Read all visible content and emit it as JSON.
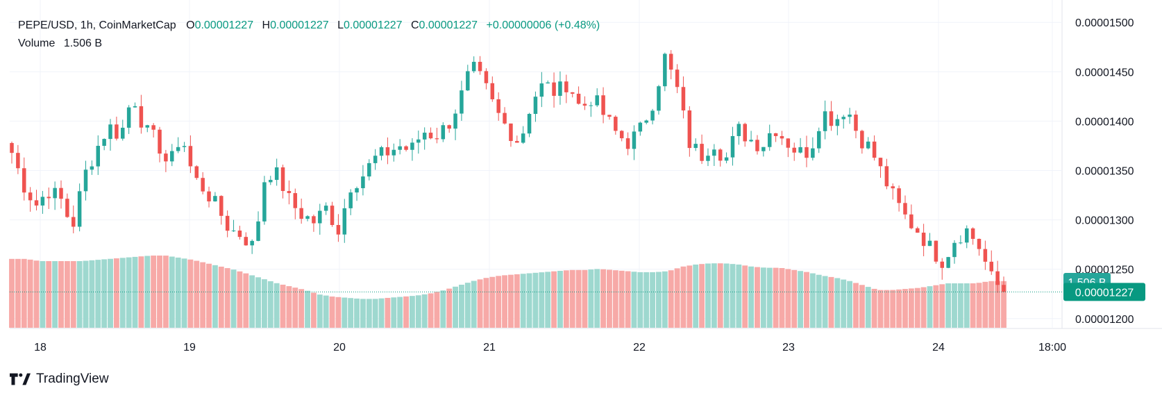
{
  "header": {
    "symbol": "PEPE/USD, 1h, CoinMarketCap",
    "o_label": "O",
    "o_value": "0.00001227",
    "h_label": "H",
    "h_value": "0.00001227",
    "l_label": "L",
    "l_value": "0.00001227",
    "c_label": "C",
    "c_value": "0.00001227",
    "change": "+0.00000006 (+0.48%)",
    "volume_label": "Volume",
    "volume_value": "1.506 B"
  },
  "branding": {
    "name": "TradingView"
  },
  "colors": {
    "up": "#26a69a",
    "down": "#ef5350",
    "vol_up": "#9ed8cf",
    "vol_down": "#f7a9a7",
    "grid": "#f0f3fa",
    "axis_text": "#131722",
    "price_line": "#089981"
  },
  "price_tag": {
    "value": "0.00001227"
  },
  "volume_tag": {
    "value": "1.506 B"
  },
  "chart_data": {
    "type": "candlestick",
    "y_axis_ticks": [
      "0.00001200",
      "0.00001250",
      "0.00001300",
      "0.00001350",
      "0.00001400",
      "0.00001450",
      "0.00001500"
    ],
    "ylim": [
      1.19e-05,
      1.51e-05
    ],
    "x_axis_ticks": [
      "18",
      "19",
      "20",
      "21",
      "22",
      "23",
      "24",
      "18:00"
    ],
    "grid": true,
    "close_path": [
      1.368e-05,
      1.335e-05,
      1.315e-05,
      1.33e-05,
      1.322e-05,
      1.292e-05,
      1.345e-05,
      1.372e-05,
      1.395e-05,
      1.385e-05,
      1.428e-05,
      1.39e-05,
      1.38e-05,
      1.353e-05,
      1.388e-05,
      1.343e-05,
      1.33e-05,
      1.312e-05,
      1.29e-05,
      1.285e-05,
      1.272e-05,
      1.35e-05,
      1.345e-05,
      1.318e-05,
      1.305e-05,
      1.298e-05,
      1.312e-05,
      1.29e-05,
      1.335e-05,
      1.345e-05,
      1.362e-05,
      1.368e-05,
      1.375e-05,
      1.37e-05,
      1.39e-05,
      1.385e-05,
      1.395e-05,
      1.42e-05,
      1.455e-05,
      1.438e-05,
      1.41e-05,
      1.392e-05,
      1.378e-05,
      1.422e-05,
      1.438e-05,
      1.428e-05,
      1.44e-05,
      1.412e-05,
      1.425e-05,
      1.405e-05,
      1.387e-05,
      1.378e-05,
      1.392e-05,
      1.42e-05,
      1.465e-05,
      1.432e-05,
      1.378e-05,
      1.365e-05,
      1.38e-05,
      1.36e-05,
      1.392e-05,
      1.382e-05,
      1.375e-05,
      1.395e-05,
      1.38e-05,
      1.368e-05,
      1.37e-05,
      1.41e-05,
      1.4e-05,
      1.415e-05,
      1.385e-05,
      1.372e-05,
      1.345e-05,
      1.32e-05,
      1.3e-05,
      1.288e-05,
      1.27e-05,
      1.258e-05,
      1.282e-05,
      1.29e-05,
      1.272e-05,
      1.24e-05,
      1.227e-05
    ],
    "candle_count": 162,
    "volume_profile": [
      0.62,
      0.62,
      0.6,
      0.6,
      0.6,
      0.6,
      0.61,
      0.62,
      0.63,
      0.64,
      0.65,
      0.65,
      0.63,
      0.61,
      0.58,
      0.55,
      0.52,
      0.48,
      0.44,
      0.4,
      0.37,
      0.34,
      0.3,
      0.28,
      0.27,
      0.26,
      0.26,
      0.27,
      0.28,
      0.29,
      0.31,
      0.34,
      0.38,
      0.42,
      0.45,
      0.47,
      0.48,
      0.49,
      0.5,
      0.51,
      0.52,
      0.52,
      0.53,
      0.52,
      0.51,
      0.5,
      0.5,
      0.51,
      0.55,
      0.57,
      0.58,
      0.58,
      0.57,
      0.55,
      0.54,
      0.54,
      0.52,
      0.5,
      0.47,
      0.45,
      0.42,
      0.38,
      0.34,
      0.34,
      0.35,
      0.36,
      0.38,
      0.4,
      0.4,
      0.4,
      0.42,
      0.42
    ]
  }
}
